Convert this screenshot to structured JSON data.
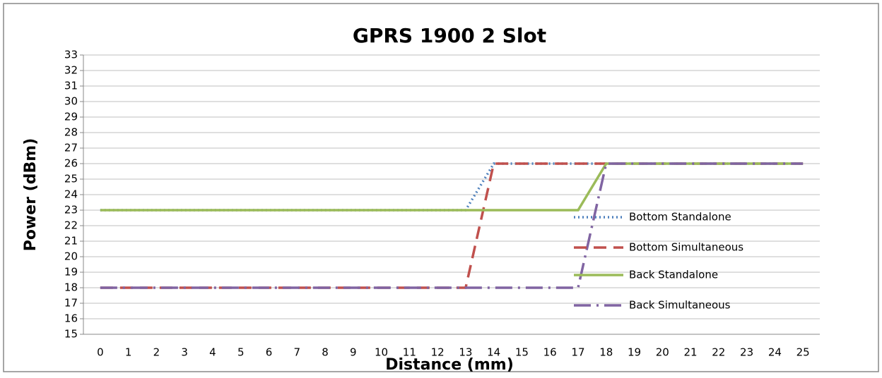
{
  "chart_data": {
    "type": "line",
    "title": "GPRS 1900 2 Slot",
    "x_label": "Distance (mm)",
    "y_label": "Power (dBm)",
    "x": [
      0,
      1,
      2,
      3,
      4,
      5,
      6,
      7,
      8,
      9,
      10,
      11,
      12,
      13,
      14,
      15,
      16,
      17,
      18,
      19,
      20,
      21,
      22,
      23,
      24,
      25
    ],
    "xlim": [
      -0.6,
      25.6
    ],
    "xticks": [
      0,
      1,
      2,
      3,
      4,
      5,
      6,
      7,
      8,
      9,
      10,
      11,
      12,
      13,
      14,
      15,
      16,
      17,
      18,
      19,
      20,
      21,
      22,
      23,
      24,
      25
    ],
    "ylim": [
      15,
      33
    ],
    "yticks": [
      15,
      16,
      17,
      18,
      19,
      20,
      21,
      22,
      23,
      24,
      25,
      26,
      27,
      28,
      29,
      30,
      31,
      32,
      33
    ],
    "grid": true,
    "legend": "right",
    "series": [
      {
        "name": "Bottom Standalone",
        "color": "#4f81bd",
        "dash": "dotted",
        "values": [
          23,
          23,
          23,
          23,
          23,
          23,
          23,
          23,
          23,
          23,
          23,
          23,
          23,
          23,
          26,
          26,
          26,
          26,
          26,
          26,
          26,
          26,
          26,
          26,
          26,
          26
        ]
      },
      {
        "name": "Bottom Simultaneous",
        "color": "#c0504d",
        "dash": "dashed",
        "values": [
          18,
          18,
          18,
          18,
          18,
          18,
          18,
          18,
          18,
          18,
          18,
          18,
          18,
          18,
          26,
          26,
          26,
          26,
          26,
          26,
          26,
          26,
          26,
          26,
          26,
          26
        ]
      },
      {
        "name": "Back Standalone",
        "color": "#9bbb59",
        "dash": "solid",
        "values": [
          23,
          23,
          23,
          23,
          23,
          23,
          23,
          23,
          23,
          23,
          23,
          23,
          23,
          23,
          23,
          23,
          23,
          23,
          26,
          26,
          26,
          26,
          26,
          26,
          26,
          26
        ]
      },
      {
        "name": "Back Simultaneous",
        "color": "#8064a2",
        "dash": "dashdot",
        "values": [
          18,
          18,
          18,
          18,
          18,
          18,
          18,
          18,
          18,
          18,
          18,
          18,
          18,
          18,
          18,
          18,
          18,
          18,
          26,
          26,
          26,
          26,
          26,
          26,
          26,
          26
        ]
      }
    ]
  }
}
